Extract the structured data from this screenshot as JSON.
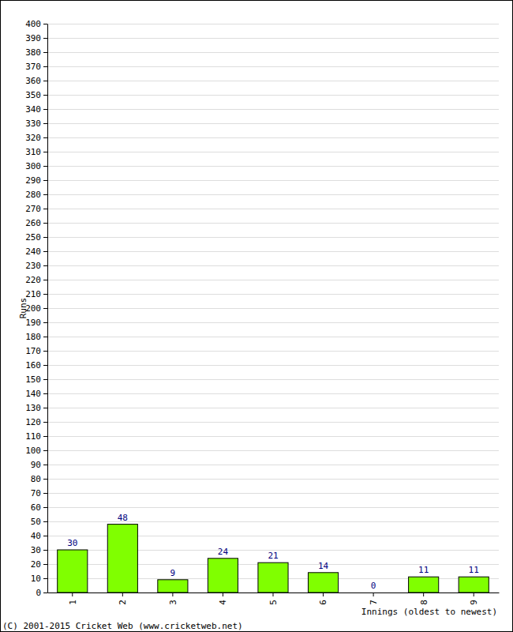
{
  "chart_data": {
    "type": "bar",
    "x_label": "Innings (oldest to newest)",
    "y_label": "Runs",
    "annotations": [
      "(C) 2001-2015 Cricket Web (www.cricketweb.net)"
    ],
    "categories": [
      "1",
      "2",
      "3",
      "4",
      "5",
      "6",
      "7",
      "8",
      "9"
    ],
    "values": [
      30,
      48,
      9,
      24,
      21,
      14,
      0,
      11,
      11
    ],
    "color": "#80ff00",
    "ylim": [
      0,
      400
    ],
    "yticks": [
      0,
      10,
      20,
      30,
      40,
      50,
      60,
      70,
      80,
      90,
      100,
      110,
      120,
      130,
      140,
      150,
      160,
      170,
      180,
      190,
      200,
      210,
      220,
      230,
      240,
      250,
      260,
      270,
      280,
      290,
      300,
      310,
      320,
      330,
      340,
      350,
      360,
      370,
      380,
      390,
      400
    ],
    "grid": true,
    "data_labels": true
  }
}
